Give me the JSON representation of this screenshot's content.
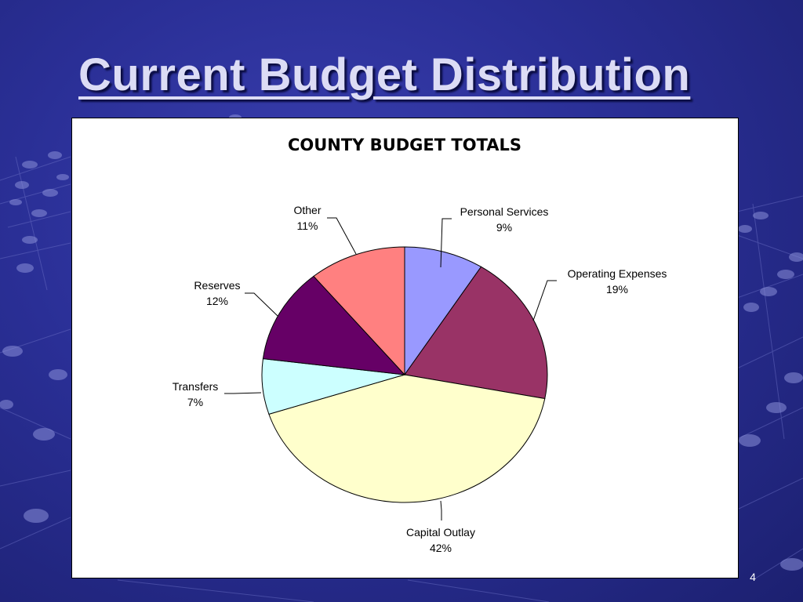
{
  "slide": {
    "title": "Current Budget Distribution",
    "page_number": "4"
  },
  "colors": {
    "background": "#2a2f96",
    "title_text": "#dcdcf5"
  },
  "chart_data": {
    "type": "pie",
    "title": "COUNTY BUDGET TOTALS",
    "start_angle_deg": 0,
    "direction": "clockwise",
    "slices": [
      {
        "label": "Personal Services",
        "value": 9,
        "value_label": "9%",
        "color": "#9999ff"
      },
      {
        "label": "Operating Expenses",
        "value": 19,
        "value_label": "19%",
        "color": "#993366"
      },
      {
        "label": "Capital Outlay",
        "value": 42,
        "value_label": "42%",
        "color": "#ffffcc"
      },
      {
        "label": "Transfers",
        "value": 7,
        "value_label": "7%",
        "color": "#ccffff"
      },
      {
        "label": "Reserves",
        "value": 12,
        "value_label": "12%",
        "color": "#660066"
      },
      {
        "label": "Other",
        "value": 11,
        "value_label": "11%",
        "color": "#ff8080"
      }
    ]
  }
}
